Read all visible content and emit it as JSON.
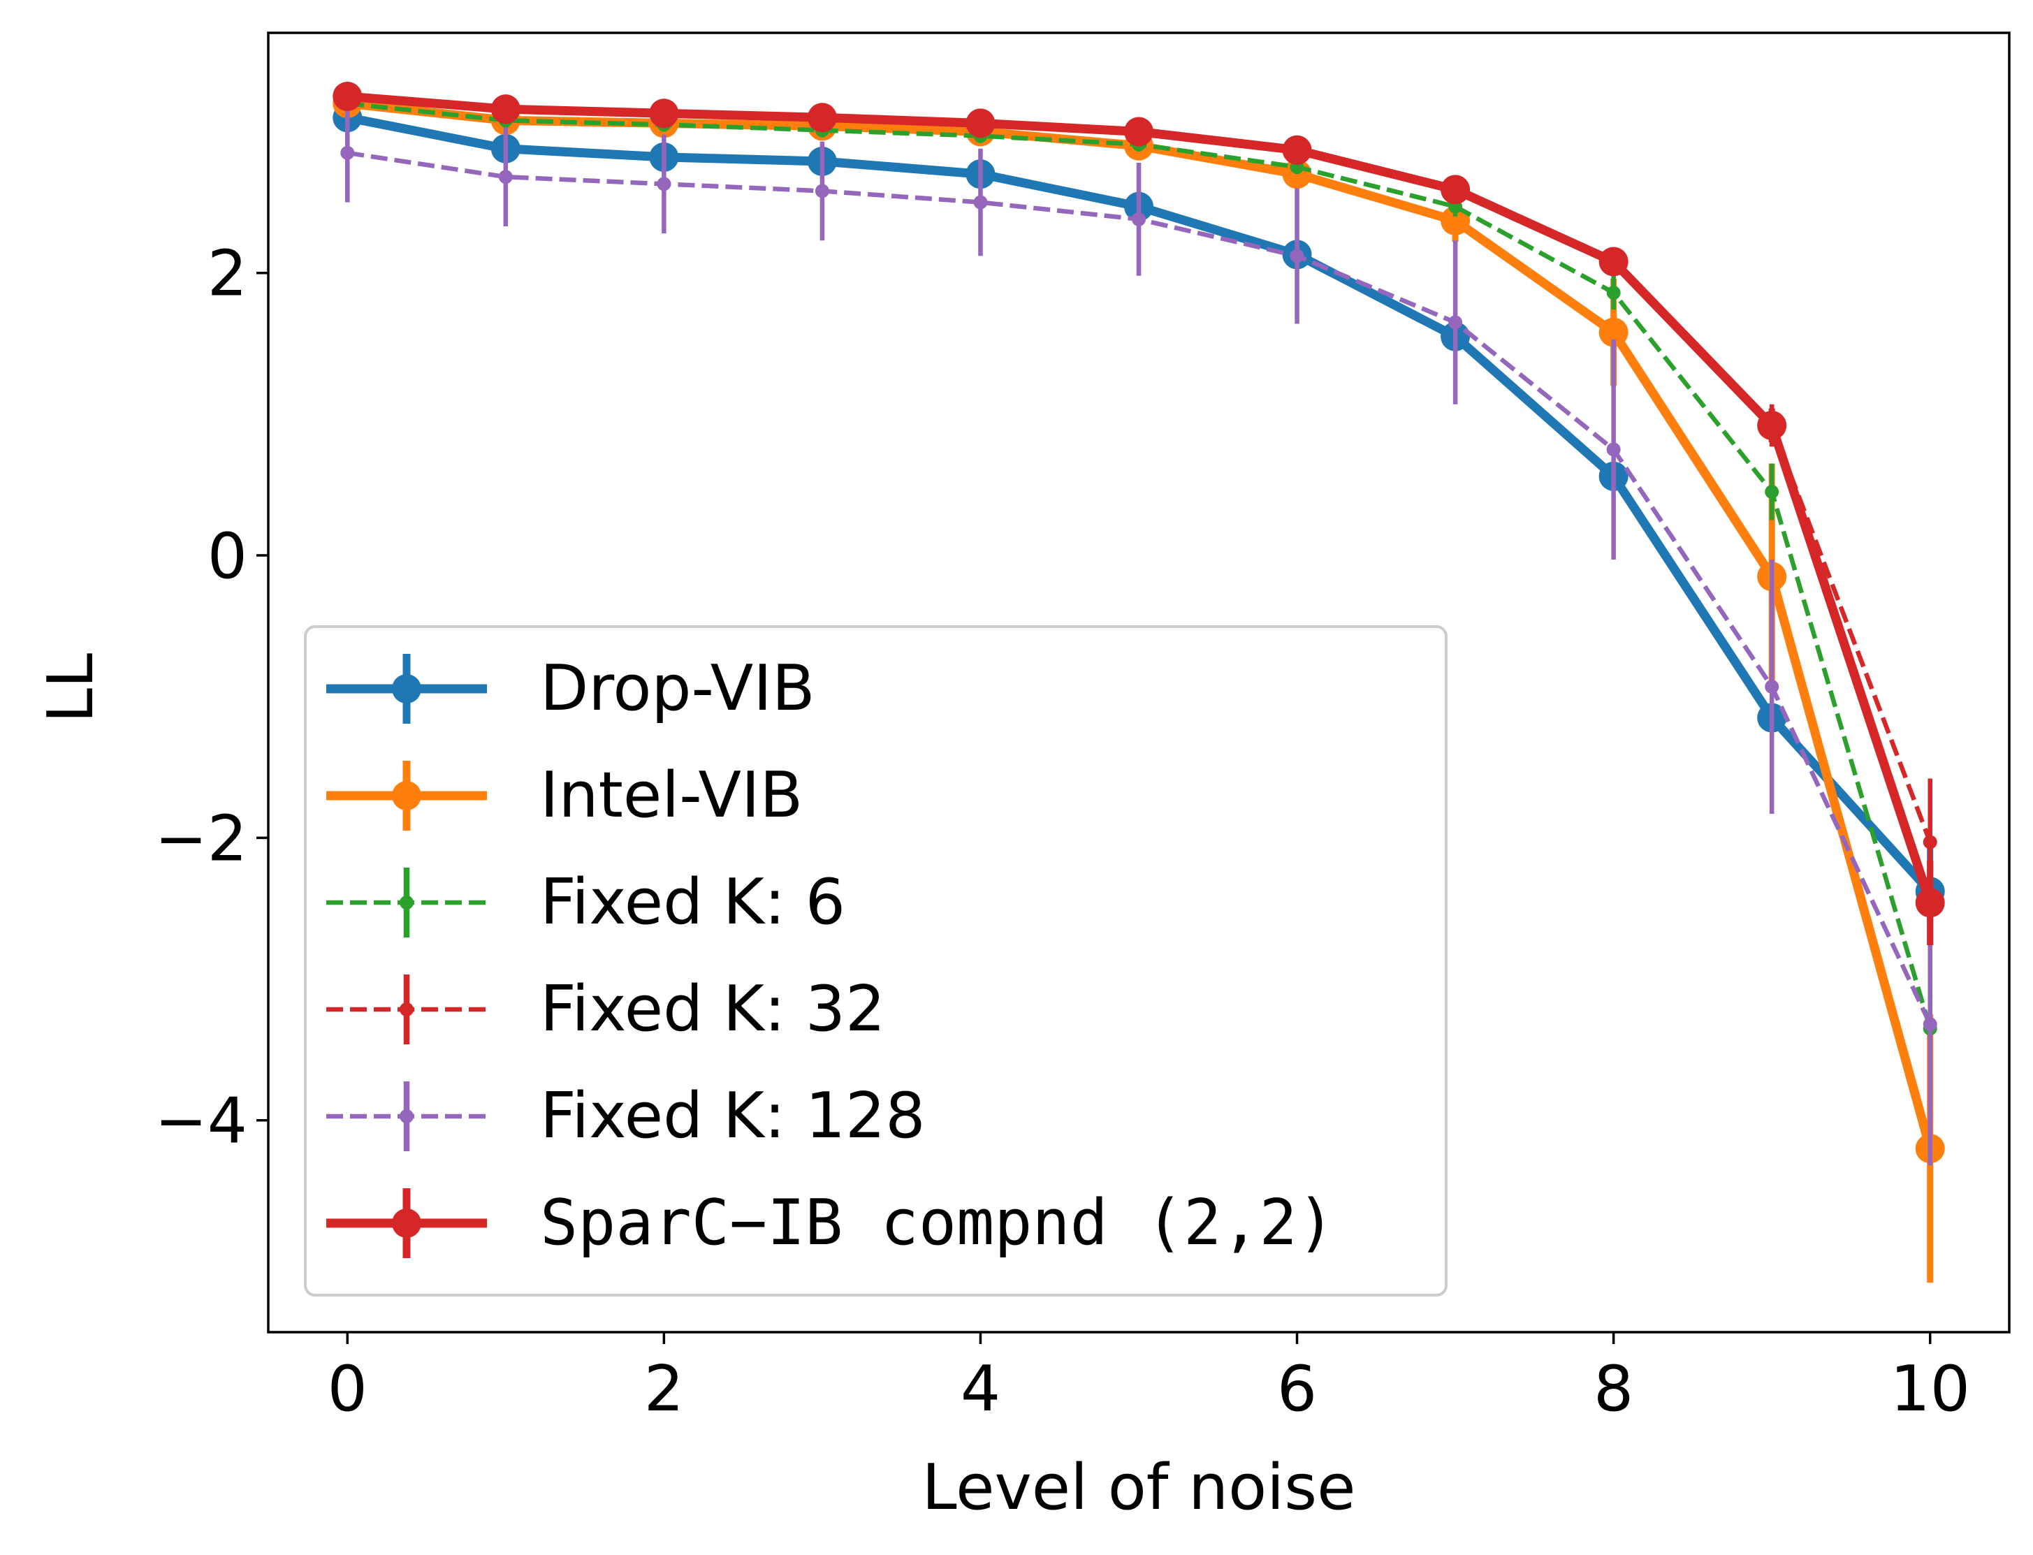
{
  "chart_data": {
    "type": "line",
    "title": "",
    "xlabel": "Level of noise",
    "ylabel": "LL",
    "x": [
      0,
      1,
      2,
      3,
      4,
      5,
      6,
      7,
      8,
      9,
      10
    ],
    "xlim": [
      -0.5,
      10.5
    ],
    "ylim": [
      -5.5,
      3.7
    ],
    "xticks": [
      0,
      2,
      4,
      6,
      8,
      10
    ],
    "xtick_labels": [
      "0",
      "2",
      "4",
      "6",
      "8",
      "10"
    ],
    "yticks": [
      -4,
      -2,
      0,
      2
    ],
    "ytick_labels": [
      "−4",
      "−2",
      "0",
      "2"
    ],
    "grid": false,
    "legend_position": "lower-left",
    "series": [
      {
        "name": "Drop-VIB",
        "color": "#1f77b4",
        "style": "solid-thick",
        "values": [
          3.1,
          2.88,
          2.82,
          2.79,
          2.7,
          2.47,
          2.13,
          1.55,
          0.56,
          -1.15,
          -2.38
        ],
        "errors": [
          0.1,
          0.08,
          0.08,
          0.08,
          0.08,
          0.08,
          0.08,
          0.08,
          0.08,
          0.1,
          0.38
        ]
      },
      {
        "name": "Intel-VIB",
        "color": "#ff7f0e",
        "style": "solid-thick",
        "values": [
          3.2,
          3.08,
          3.06,
          3.04,
          3.0,
          2.9,
          2.7,
          2.37,
          1.58,
          -0.15,
          -4.2
        ],
        "errors": [
          0.05,
          0.05,
          0.05,
          0.05,
          0.05,
          0.05,
          0.05,
          0.15,
          0.38,
          0.8,
          0.95
        ]
      },
      {
        "name": "Fixed K: 6",
        "color": "#2ca02c",
        "style": "dashed",
        "values": [
          3.2,
          3.08,
          3.05,
          3.01,
          2.97,
          2.91,
          2.75,
          2.47,
          1.86,
          0.45,
          -3.35
        ],
        "errors": [
          0.05,
          0.05,
          0.05,
          0.05,
          0.05,
          0.05,
          0.05,
          0.07,
          0.12,
          0.2,
          0.3
        ]
      },
      {
        "name": "Fixed K: 32",
        "color": "#d62728",
        "style": "dashed",
        "values": [
          3.25,
          3.16,
          3.13,
          3.1,
          3.06,
          3.0,
          2.87,
          2.59,
          2.08,
          0.92,
          -2.03
        ],
        "errors": [
          0.05,
          0.05,
          0.05,
          0.05,
          0.05,
          0.05,
          0.05,
          0.05,
          0.08,
          0.15,
          0.45
        ]
      },
      {
        "name": "Fixed K: 128",
        "color": "#9467bd",
        "style": "dashed",
        "values": [
          2.85,
          2.68,
          2.63,
          2.58,
          2.5,
          2.38,
          2.12,
          1.65,
          0.75,
          -0.93,
          -3.32
        ],
        "errors": [
          0.35,
          0.35,
          0.35,
          0.35,
          0.38,
          0.4,
          0.48,
          0.58,
          0.78,
          0.9,
          1.0
        ]
      },
      {
        "name": "SparC−IB compnd (2,2)",
        "color": "#d62728",
        "style": "solid-thick",
        "values": [
          3.25,
          3.16,
          3.13,
          3.1,
          3.06,
          3.0,
          2.87,
          2.59,
          2.08,
          0.92,
          -2.46
        ],
        "errors": [
          0.05,
          0.05,
          0.05,
          0.05,
          0.05,
          0.05,
          0.05,
          0.05,
          0.08,
          0.12,
          0.3
        ]
      }
    ]
  }
}
